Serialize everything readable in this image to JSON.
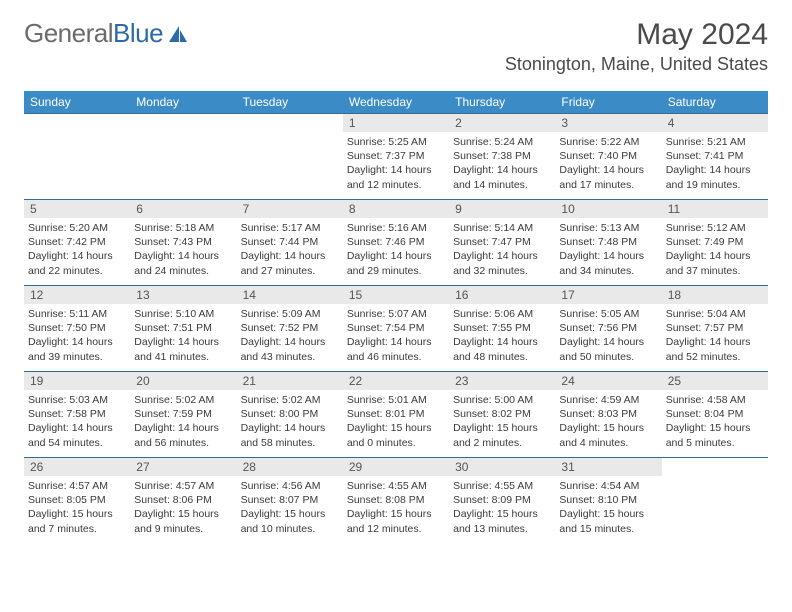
{
  "brand": {
    "gray": "General",
    "blue": "Blue"
  },
  "colors": {
    "header_bg": "#3b8bc6",
    "header_text": "#ffffff",
    "daynum_bg": "#e9e9e9",
    "daynum_text": "#555555",
    "body_text": "#3a3a3a",
    "rule": "#3b6a90",
    "logo_gray": "#6b6b6b",
    "logo_blue": "#2d6aa8"
  },
  "title": "May 2024",
  "location": "Stonington, Maine, United States",
  "weekdays": [
    "Sunday",
    "Monday",
    "Tuesday",
    "Wednesday",
    "Thursday",
    "Friday",
    "Saturday"
  ],
  "weeks": [
    [
      null,
      null,
      null,
      {
        "n": "1",
        "sr": "5:25 AM",
        "ss": "7:37 PM",
        "dl": "14 hours and 12 minutes."
      },
      {
        "n": "2",
        "sr": "5:24 AM",
        "ss": "7:38 PM",
        "dl": "14 hours and 14 minutes."
      },
      {
        "n": "3",
        "sr": "5:22 AM",
        "ss": "7:40 PM",
        "dl": "14 hours and 17 minutes."
      },
      {
        "n": "4",
        "sr": "5:21 AM",
        "ss": "7:41 PM",
        "dl": "14 hours and 19 minutes."
      }
    ],
    [
      {
        "n": "5",
        "sr": "5:20 AM",
        "ss": "7:42 PM",
        "dl": "14 hours and 22 minutes."
      },
      {
        "n": "6",
        "sr": "5:18 AM",
        "ss": "7:43 PM",
        "dl": "14 hours and 24 minutes."
      },
      {
        "n": "7",
        "sr": "5:17 AM",
        "ss": "7:44 PM",
        "dl": "14 hours and 27 minutes."
      },
      {
        "n": "8",
        "sr": "5:16 AM",
        "ss": "7:46 PM",
        "dl": "14 hours and 29 minutes."
      },
      {
        "n": "9",
        "sr": "5:14 AM",
        "ss": "7:47 PM",
        "dl": "14 hours and 32 minutes."
      },
      {
        "n": "10",
        "sr": "5:13 AM",
        "ss": "7:48 PM",
        "dl": "14 hours and 34 minutes."
      },
      {
        "n": "11",
        "sr": "5:12 AM",
        "ss": "7:49 PM",
        "dl": "14 hours and 37 minutes."
      }
    ],
    [
      {
        "n": "12",
        "sr": "5:11 AM",
        "ss": "7:50 PM",
        "dl": "14 hours and 39 minutes."
      },
      {
        "n": "13",
        "sr": "5:10 AM",
        "ss": "7:51 PM",
        "dl": "14 hours and 41 minutes."
      },
      {
        "n": "14",
        "sr": "5:09 AM",
        "ss": "7:52 PM",
        "dl": "14 hours and 43 minutes."
      },
      {
        "n": "15",
        "sr": "5:07 AM",
        "ss": "7:54 PM",
        "dl": "14 hours and 46 minutes."
      },
      {
        "n": "16",
        "sr": "5:06 AM",
        "ss": "7:55 PM",
        "dl": "14 hours and 48 minutes."
      },
      {
        "n": "17",
        "sr": "5:05 AM",
        "ss": "7:56 PM",
        "dl": "14 hours and 50 minutes."
      },
      {
        "n": "18",
        "sr": "5:04 AM",
        "ss": "7:57 PM",
        "dl": "14 hours and 52 minutes."
      }
    ],
    [
      {
        "n": "19",
        "sr": "5:03 AM",
        "ss": "7:58 PM",
        "dl": "14 hours and 54 minutes."
      },
      {
        "n": "20",
        "sr": "5:02 AM",
        "ss": "7:59 PM",
        "dl": "14 hours and 56 minutes."
      },
      {
        "n": "21",
        "sr": "5:02 AM",
        "ss": "8:00 PM",
        "dl": "14 hours and 58 minutes."
      },
      {
        "n": "22",
        "sr": "5:01 AM",
        "ss": "8:01 PM",
        "dl": "15 hours and 0 minutes."
      },
      {
        "n": "23",
        "sr": "5:00 AM",
        "ss": "8:02 PM",
        "dl": "15 hours and 2 minutes."
      },
      {
        "n": "24",
        "sr": "4:59 AM",
        "ss": "8:03 PM",
        "dl": "15 hours and 4 minutes."
      },
      {
        "n": "25",
        "sr": "4:58 AM",
        "ss": "8:04 PM",
        "dl": "15 hours and 5 minutes."
      }
    ],
    [
      {
        "n": "26",
        "sr": "4:57 AM",
        "ss": "8:05 PM",
        "dl": "15 hours and 7 minutes."
      },
      {
        "n": "27",
        "sr": "4:57 AM",
        "ss": "8:06 PM",
        "dl": "15 hours and 9 minutes."
      },
      {
        "n": "28",
        "sr": "4:56 AM",
        "ss": "8:07 PM",
        "dl": "15 hours and 10 minutes."
      },
      {
        "n": "29",
        "sr": "4:55 AM",
        "ss": "8:08 PM",
        "dl": "15 hours and 12 minutes."
      },
      {
        "n": "30",
        "sr": "4:55 AM",
        "ss": "8:09 PM",
        "dl": "15 hours and 13 minutes."
      },
      {
        "n": "31",
        "sr": "4:54 AM",
        "ss": "8:10 PM",
        "dl": "15 hours and 15 minutes."
      },
      null
    ]
  ],
  "labels": {
    "sunrise": "Sunrise:",
    "sunset": "Sunset:",
    "daylight": "Daylight:"
  }
}
